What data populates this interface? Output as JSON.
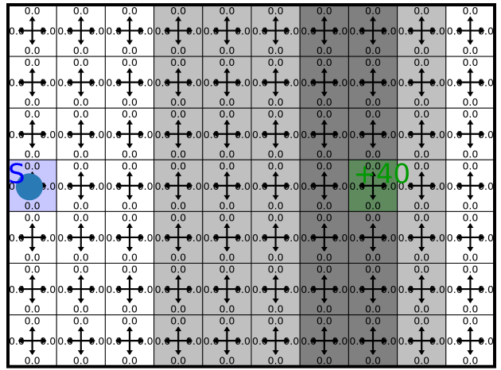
{
  "grid": {
    "rows": 7,
    "cols": 10,
    "default_q_value": "0.0",
    "column_shading": [
      "white",
      "white",
      "white",
      "light",
      "light",
      "light",
      "dark",
      "dark",
      "light",
      "white"
    ],
    "shade_colors": {
      "white": "#ffffff",
      "light": "#c0c0c0",
      "dark": "#808080"
    }
  },
  "start": {
    "label": "S",
    "row": 3,
    "col": 0,
    "label_color": "#0000ff",
    "fill_color": "#c8c8ff"
  },
  "goal": {
    "label": "+40",
    "row": 3,
    "col": 7,
    "label_color": "#009900",
    "fill_color": "#5e8a5e"
  },
  "agent": {
    "row": 3,
    "col": 0,
    "color": "#2a7ab5"
  },
  "border_color": "#000000"
}
